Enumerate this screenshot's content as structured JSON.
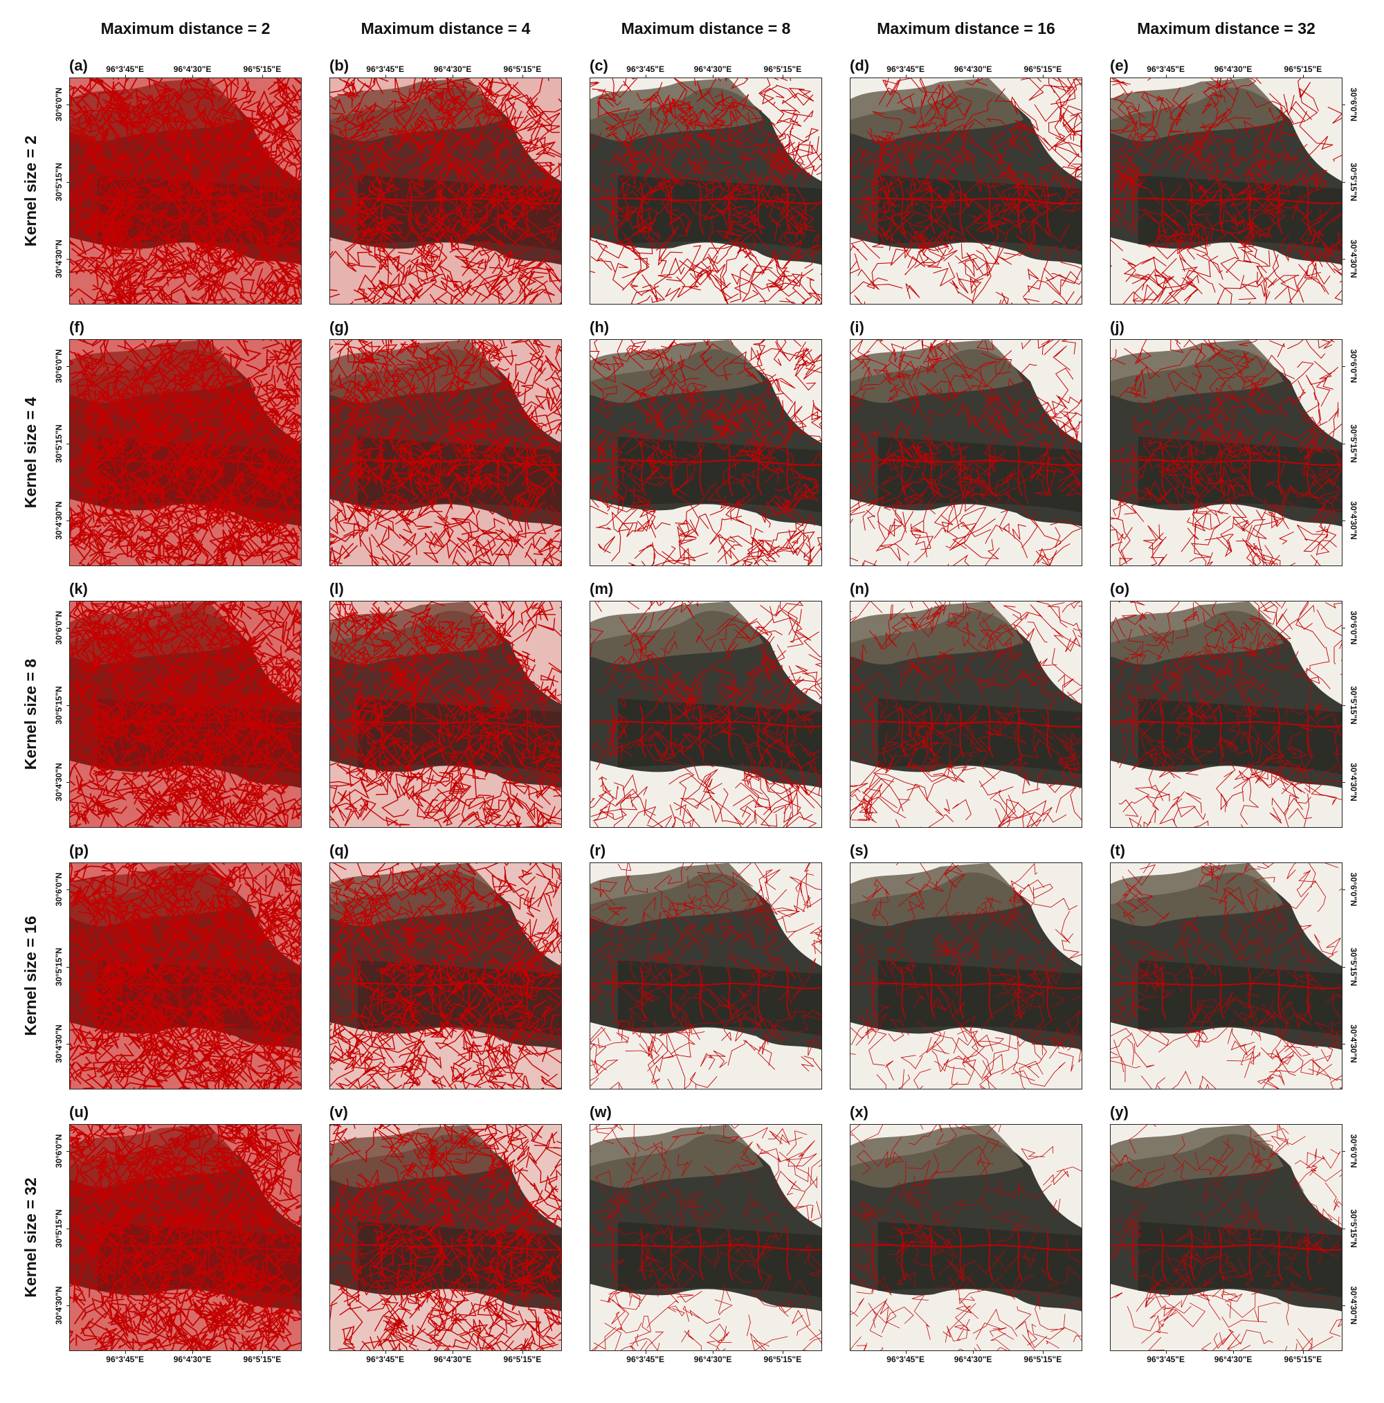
{
  "columns": [
    {
      "label": "Maximum distance = 2"
    },
    {
      "label": "Maximum distance = 4"
    },
    {
      "label": "Maximum distance = 8"
    },
    {
      "label": "Maximum distance = 16"
    },
    {
      "label": "Maximum distance = 32"
    }
  ],
  "rows": [
    {
      "label": "Kernel size = 2"
    },
    {
      "label": "Kernel size = 4"
    },
    {
      "label": "Kernel size = 8"
    },
    {
      "label": "Kernel size = 16"
    },
    {
      "label": "Kernel size = 32"
    }
  ],
  "panel_labels": [
    "(a)",
    "(b)",
    "(c)",
    "(d)",
    "(e)",
    "(f)",
    "(g)",
    "(h)",
    "(i)",
    "(j)",
    "(k)",
    "(l)",
    "(m)",
    "(n)",
    "(o)",
    "(p)",
    "(q)",
    "(r)",
    "(s)",
    "(t)",
    "(u)",
    "(v)",
    "(w)",
    "(x)",
    "(y)"
  ],
  "longitude_ticks": [
    "96°3'45\"E",
    "96°4'30\"E",
    "96°5'15\"E"
  ],
  "latitude_ticks": [
    "30°6'0\"N",
    "30°5'15\"N",
    "30°4'30\"N"
  ],
  "segmentation_density": [
    [
      1.0,
      0.7,
      0.45,
      0.38,
      0.38
    ],
    [
      1.0,
      0.68,
      0.4,
      0.32,
      0.32
    ],
    [
      1.0,
      0.66,
      0.32,
      0.26,
      0.26
    ],
    [
      1.0,
      0.64,
      0.22,
      0.18,
      0.18
    ],
    [
      1.0,
      0.62,
      0.16,
      0.14,
      0.14
    ]
  ],
  "colors": {
    "boundary": "#c40000",
    "dark_terrain": "#3a3a34",
    "snow": "#f2efe9",
    "rock": "#6b6251"
  }
}
